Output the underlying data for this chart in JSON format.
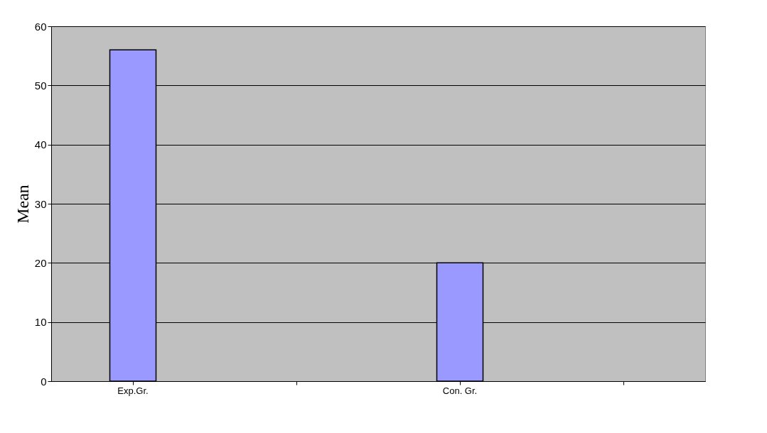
{
  "chart_data": {
    "type": "bar",
    "ylabel": "Mean",
    "categories": [
      "Exp.Gr.",
      null,
      "Con. Gr.",
      null
    ],
    "values": [
      56,
      null,
      20,
      null
    ],
    "color": "#9999ff",
    "ylim": [
      0,
      60
    ],
    "yticks": [
      0,
      10,
      20,
      30,
      40,
      50,
      60
    ],
    "grid": "y"
  }
}
